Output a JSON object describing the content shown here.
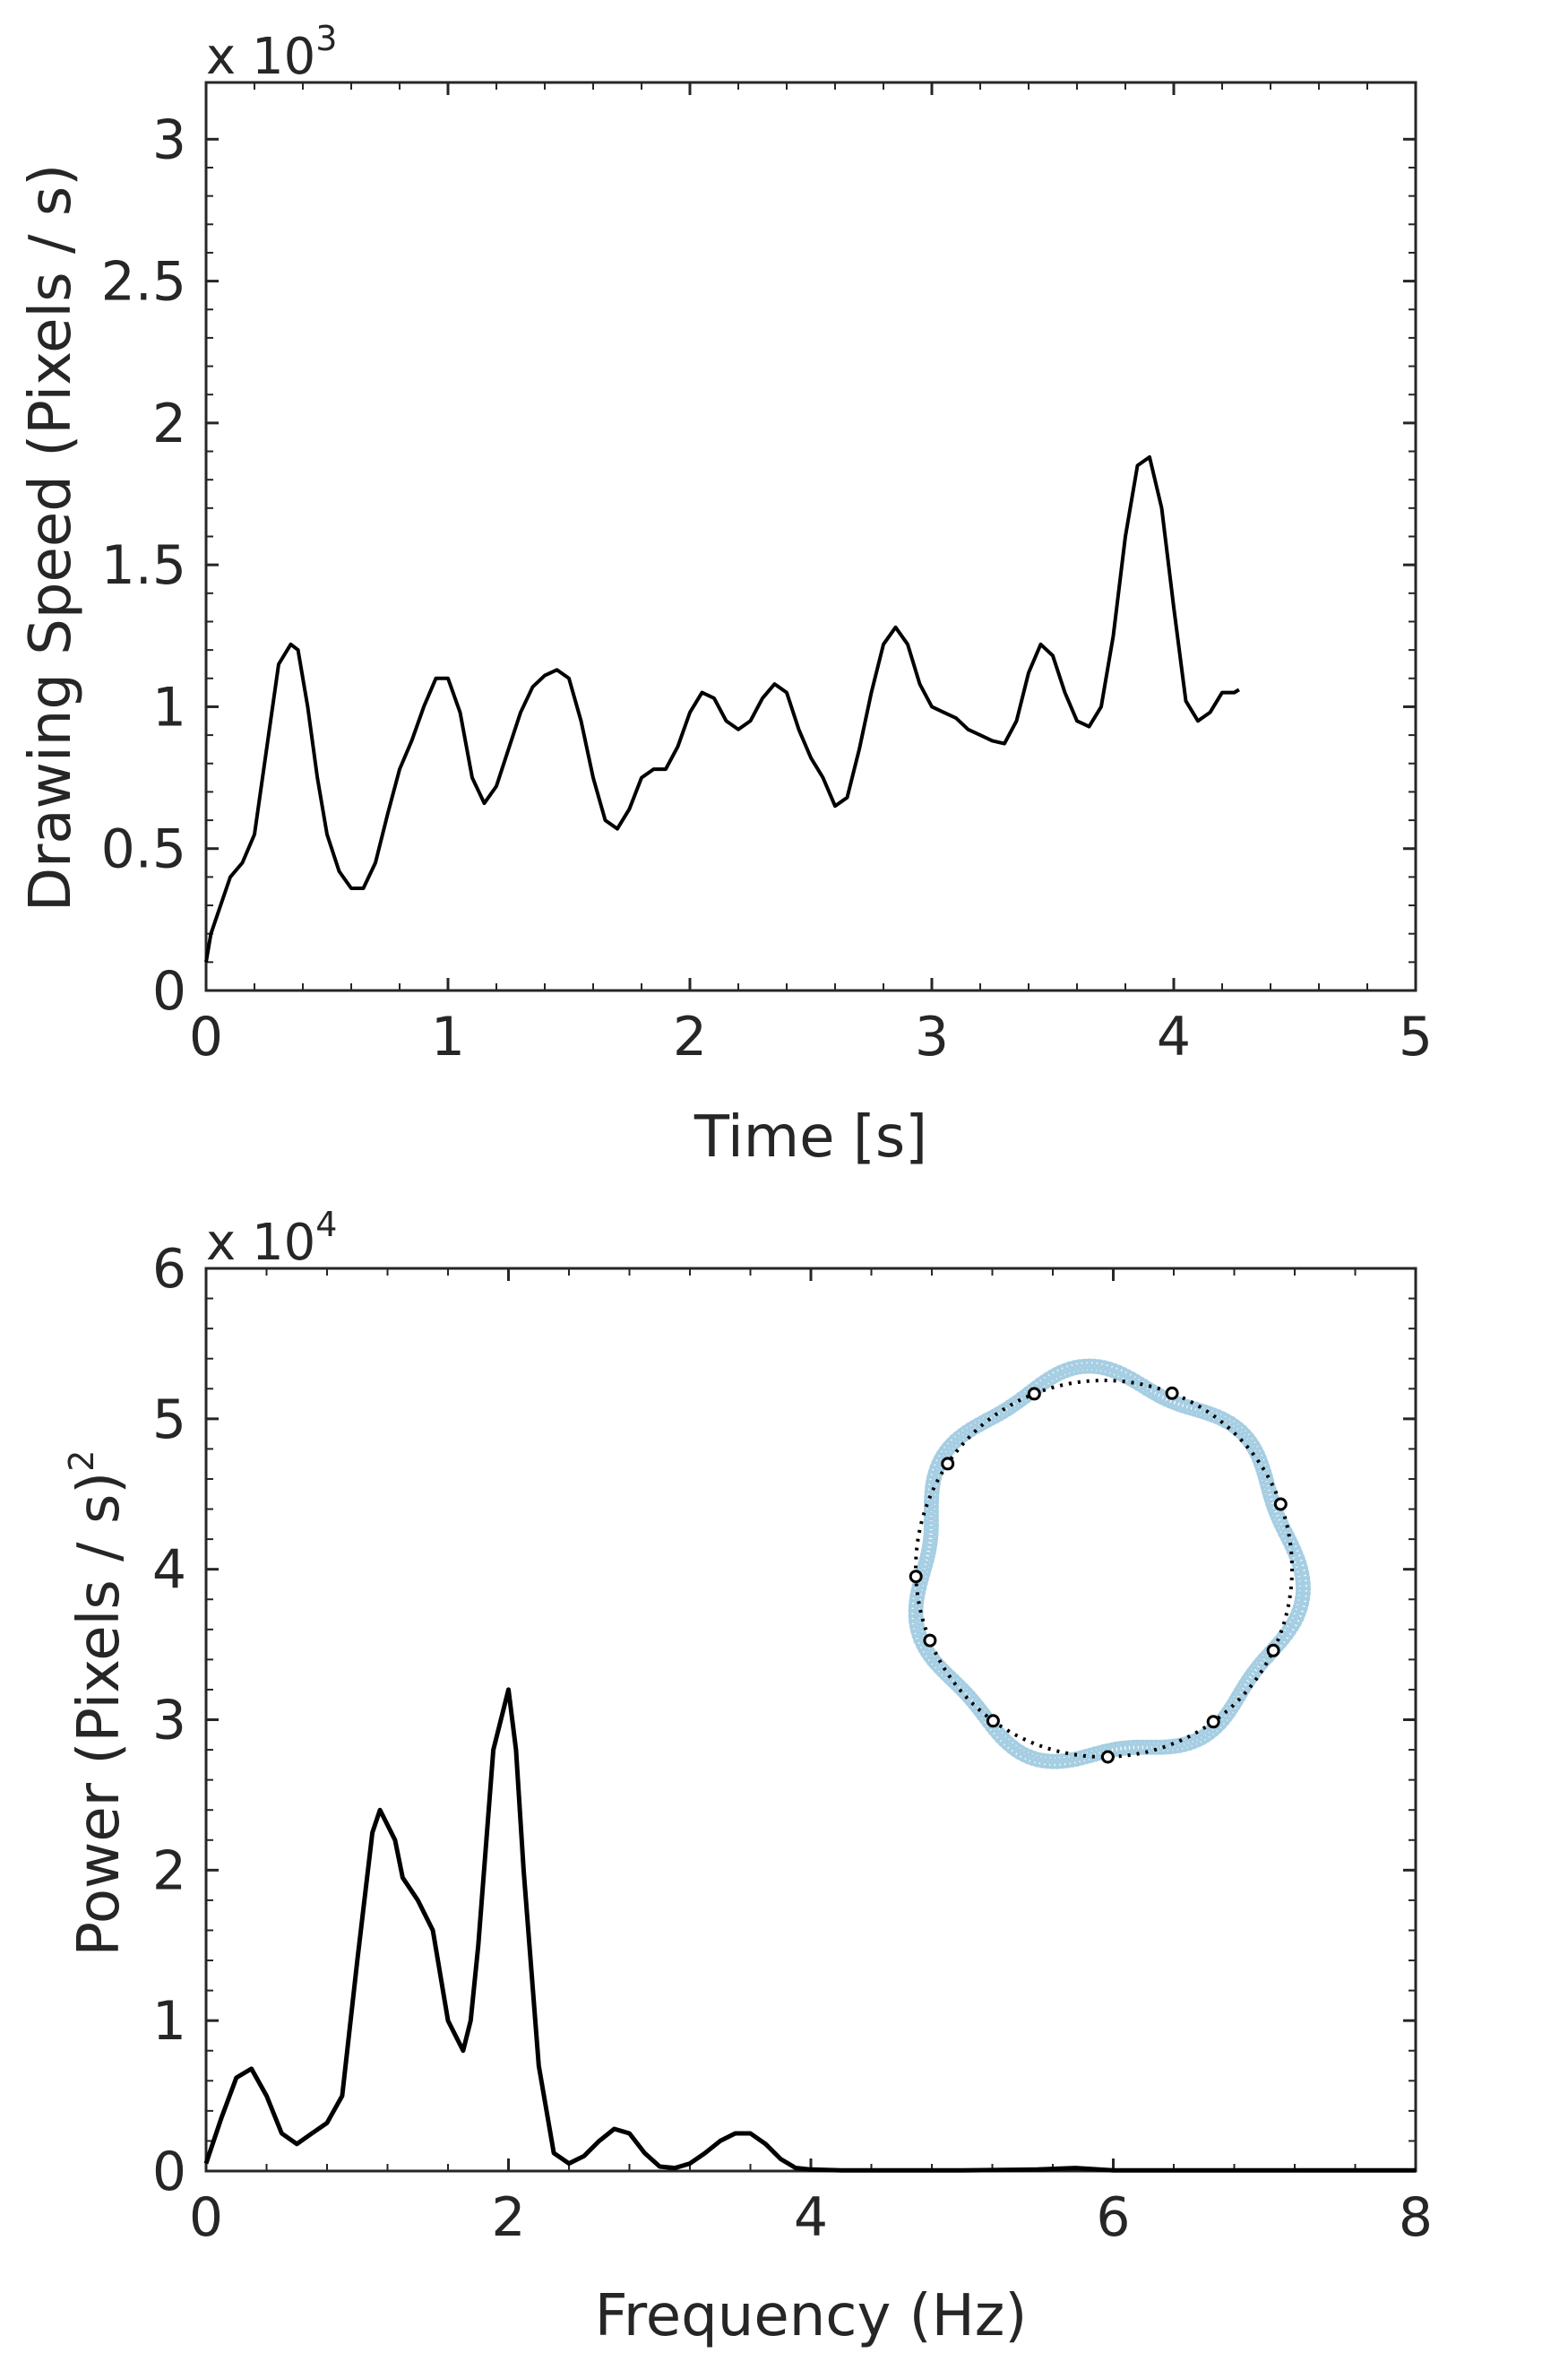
{
  "chart_data": [
    {
      "type": "line",
      "xlabel": "Time [s]",
      "ylabel": "Drawing Speed (Pixels / s)",
      "y_multiplier": {
        "base": "x 10",
        "exponent": "3"
      },
      "xlim": [
        0,
        5
      ],
      "ylim": [
        0,
        3.2
      ],
      "xticks": [
        0,
        1,
        2,
        3,
        4,
        5
      ],
      "yticks": [
        0,
        0.5,
        1,
        1.5,
        2,
        2.5,
        3
      ],
      "xtick_labels": [
        "0",
        "1",
        "2",
        "3",
        "4",
        "5"
      ],
      "ytick_labels": [
        "0",
        "0.5",
        "1",
        "1.5",
        "2",
        "2.5",
        "3"
      ],
      "grid": false,
      "series": [
        {
          "color": "#000000",
          "x": [
            0.0,
            0.02,
            0.06,
            0.1,
            0.15,
            0.2,
            0.25,
            0.3,
            0.35,
            0.38,
            0.42,
            0.46,
            0.5,
            0.55,
            0.6,
            0.65,
            0.7,
            0.75,
            0.8,
            0.85,
            0.9,
            0.95,
            1.0,
            1.05,
            1.1,
            1.15,
            1.2,
            1.25,
            1.3,
            1.35,
            1.4,
            1.45,
            1.5,
            1.55,
            1.6,
            1.65,
            1.7,
            1.75,
            1.8,
            1.85,
            1.9,
            1.95,
            2.0,
            2.05,
            2.1,
            2.15,
            2.2,
            2.25,
            2.3,
            2.35,
            2.4,
            2.45,
            2.5,
            2.55,
            2.6,
            2.65,
            2.7,
            2.75,
            2.8,
            2.85,
            2.9,
            2.95,
            3.0,
            3.05,
            3.1,
            3.15,
            3.2,
            3.25,
            3.3,
            3.35,
            3.4,
            3.45,
            3.5,
            3.55,
            3.6,
            3.65,
            3.7,
            3.75,
            3.8,
            3.85,
            3.9,
            3.95,
            4.0,
            4.05,
            4.1,
            4.15,
            4.2,
            4.25,
            4.27
          ],
          "y": [
            0.1,
            0.2,
            0.3,
            0.4,
            0.45,
            0.55,
            0.85,
            1.15,
            1.22,
            1.2,
            1.0,
            0.75,
            0.55,
            0.42,
            0.36,
            0.36,
            0.45,
            0.62,
            0.78,
            0.88,
            1.0,
            1.1,
            1.1,
            0.98,
            0.75,
            0.66,
            0.72,
            0.85,
            0.98,
            1.07,
            1.11,
            1.13,
            1.1,
            0.95,
            0.75,
            0.6,
            0.57,
            0.64,
            0.75,
            0.78,
            0.78,
            0.86,
            0.98,
            1.05,
            1.03,
            0.95,
            0.92,
            0.95,
            1.03,
            1.08,
            1.05,
            0.92,
            0.82,
            0.75,
            0.65,
            0.68,
            0.85,
            1.05,
            1.22,
            1.28,
            1.22,
            1.08,
            1.0,
            0.98,
            0.96,
            0.92,
            0.9,
            0.88,
            0.87,
            0.95,
            1.12,
            1.22,
            1.18,
            1.05,
            0.95,
            0.93,
            1.0,
            1.25,
            1.6,
            1.85,
            1.88,
            1.7,
            1.35,
            1.02,
            0.95,
            0.98,
            1.05,
            1.05,
            1.06
          ]
        }
      ]
    },
    {
      "type": "line",
      "xlabel": "Frequency (Hz)",
      "ylabel_main": "Power (Pixels / s)",
      "ylabel_sup": "2",
      "y_multiplier": {
        "base": "x 10",
        "exponent": "4"
      },
      "xlim": [
        0,
        8
      ],
      "ylim": [
        0,
        6
      ],
      "xticks": [
        0,
        2,
        4,
        6,
        8
      ],
      "yticks": [
        0,
        1,
        2,
        3,
        4,
        5,
        6
      ],
      "xtick_labels": [
        "0",
        "2",
        "4",
        "6",
        "8"
      ],
      "ytick_labels": [
        "0",
        "1",
        "2",
        "3",
        "4",
        "5",
        "6"
      ],
      "grid": false,
      "series": [
        {
          "color": "#000000",
          "x": [
            0.0,
            0.1,
            0.2,
            0.3,
            0.4,
            0.5,
            0.6,
            0.7,
            0.8,
            0.9,
            1.0,
            1.1,
            1.15,
            1.25,
            1.3,
            1.4,
            1.5,
            1.6,
            1.7,
            1.75,
            1.8,
            1.9,
            2.0,
            2.05,
            2.1,
            2.2,
            2.3,
            2.4,
            2.5,
            2.6,
            2.7,
            2.8,
            2.9,
            3.0,
            3.1,
            3.2,
            3.3,
            3.4,
            3.5,
            3.6,
            3.7,
            3.8,
            3.9,
            4.0,
            4.2,
            4.5,
            5.0,
            5.5,
            5.75,
            6.0,
            6.5,
            7.0,
            8.0
          ],
          "y": [
            0.05,
            0.35,
            0.62,
            0.68,
            0.5,
            0.25,
            0.18,
            0.25,
            0.32,
            0.5,
            1.4,
            2.25,
            2.4,
            2.2,
            1.95,
            1.8,
            1.6,
            1.0,
            0.8,
            1.0,
            1.5,
            2.8,
            3.2,
            2.8,
            2.0,
            0.7,
            0.12,
            0.05,
            0.1,
            0.2,
            0.28,
            0.25,
            0.12,
            0.03,
            0.02,
            0.05,
            0.12,
            0.2,
            0.25,
            0.25,
            0.18,
            0.08,
            0.02,
            0.01,
            0.005,
            0.005,
            0.005,
            0.01,
            0.02,
            0.005,
            0.005,
            0.005,
            0.005
          ]
        }
      ],
      "inset_trace_color": "#a6cee3",
      "inset_template_color": "#000000"
    }
  ]
}
